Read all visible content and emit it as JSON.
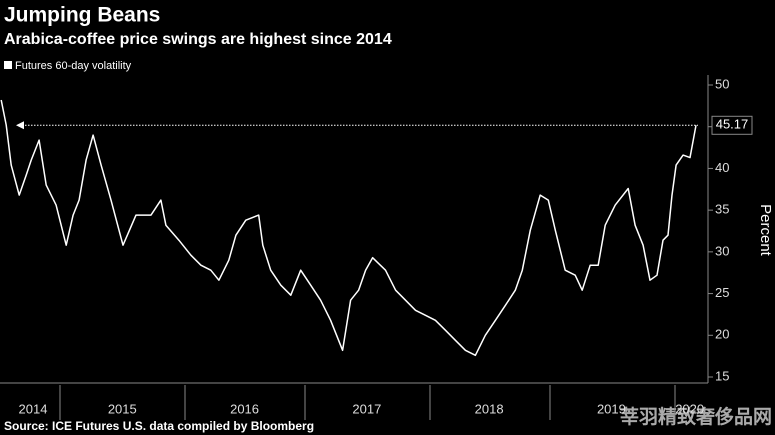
{
  "chart_data": {
    "type": "line",
    "title": "Jumping Beans",
    "subtitle": "Arabica-coffee price swings are highest since 2014",
    "y_label": "Percent",
    "source": "Source: ICE Futures U.S. data compiled by Bloomberg",
    "watermark": "莘羽精致奢侈品网",
    "annotation_value": 45.17,
    "xlim": [
      2014.5,
      2020.29
    ],
    "ylim": [
      15,
      50
    ],
    "yticks": [
      15,
      20,
      25,
      30,
      35,
      40,
      45,
      50
    ],
    "xticks": [
      {
        "value": 2014.77,
        "label": "2014"
      },
      {
        "value": 2015.5,
        "label": "2015"
      },
      {
        "value": 2016.5,
        "label": "2016"
      },
      {
        "value": 2017.5,
        "label": "2017"
      },
      {
        "value": 2018.5,
        "label": "2018"
      },
      {
        "value": 2019.5,
        "label": "2019"
      },
      {
        "value": 2020.14,
        "label": "2020"
      }
    ],
    "series": [
      {
        "name": "Futures 60-day volatility",
        "color": "#ffffff",
        "x": [
          2014.51,
          2014.551,
          2014.592,
          2014.657,
          2014.714,
          2014.755,
          2014.82,
          2014.878,
          2014.959,
          2015.041,
          2015.098,
          2015.147,
          2015.204,
          2015.261,
          2015.327,
          2015.408,
          2015.506,
          2015.612,
          2015.735,
          2015.816,
          2015.857,
          2015.963,
          2016.061,
          2016.143,
          2016.224,
          2016.29,
          2016.371,
          2016.429,
          2016.51,
          2016.616,
          2016.649,
          2016.714,
          2016.796,
          2016.878,
          2016.959,
          2017.041,
          2017.122,
          2017.204,
          2017.302,
          2017.367,
          2017.433,
          2017.49,
          2017.547,
          2017.653,
          2017.735,
          2017.816,
          2017.898,
          2017.98,
          2018.061,
          2018.143,
          2018.224,
          2018.306,
          2018.388,
          2018.469,
          2018.551,
          2018.633,
          2018.714,
          2018.771,
          2018.837,
          2018.918,
          2018.984,
          2019.041,
          2019.122,
          2019.204,
          2019.261,
          2019.327,
          2019.392,
          2019.449,
          2019.531,
          2019.637,
          2019.694,
          2019.759,
          2019.816,
          2019.873,
          2019.922,
          2019.963,
          2019.996,
          2020.029,
          2020.086,
          2020.143,
          2020.192
        ],
        "values": [
          48.2,
          45.2,
          40.4,
          36.8,
          39.2,
          41,
          43.4,
          38,
          35.6,
          30.8,
          34.4,
          36.2,
          41,
          44,
          40.4,
          36.2,
          30.8,
          34.4,
          34.4,
          36.2,
          33.2,
          31.4,
          29.6,
          28.4,
          27.8,
          26.6,
          29,
          32,
          33.8,
          34.4,
          30.8,
          27.8,
          26,
          24.8,
          27.8,
          26,
          24.2,
          21.8,
          18.2,
          24.2,
          25.4,
          27.8,
          29.3,
          27.8,
          25.4,
          24.2,
          23,
          22.4,
          21.8,
          20.6,
          19.4,
          18.2,
          17.6,
          20,
          21.8,
          23.6,
          25.4,
          27.8,
          32.6,
          36.8,
          36.2,
          32.6,
          27.8,
          27.2,
          25.4,
          28.4,
          28.4,
          33.2,
          35.6,
          37.6,
          33.2,
          30.8,
          26.6,
          27.2,
          31.4,
          32,
          36.8,
          40.4,
          41.6,
          41.3,
          45.17
        ]
      }
    ]
  }
}
